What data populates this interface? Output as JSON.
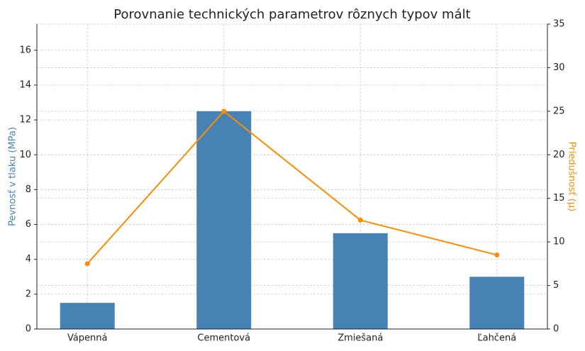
{
  "chart_data": {
    "type": "bar",
    "title": "Porovnanie technických parametrov rôznych typov mált",
    "y_label": "Pevnosť v tlaku (MPa)",
    "y2_label": "Priedušnosť (μ)",
    "categories": [
      "Vápenná",
      "Cementová",
      "Zmiešaná",
      "Ľahčená"
    ],
    "series": [
      {
        "name": "Pevnosť v tlaku (MPa)",
        "type": "bar",
        "color": "#4682b4",
        "values": [
          1.5,
          12.5,
          5.5,
          3.0
        ]
      },
      {
        "name": "Priedušnosť (μ)",
        "type": "line",
        "axis": "y2",
        "color": "#ff8c00",
        "values": [
          7.5,
          25,
          12.5,
          8.5
        ]
      }
    ],
    "ylim": [
      0,
      17.5
    ],
    "yticks": [
      0,
      2,
      4,
      6,
      8,
      10,
      12,
      14,
      16
    ],
    "y2lim": [
      0,
      35
    ],
    "y2ticks": [
      0,
      5,
      10,
      15,
      20,
      25,
      30,
      35
    ],
    "grid": true
  }
}
